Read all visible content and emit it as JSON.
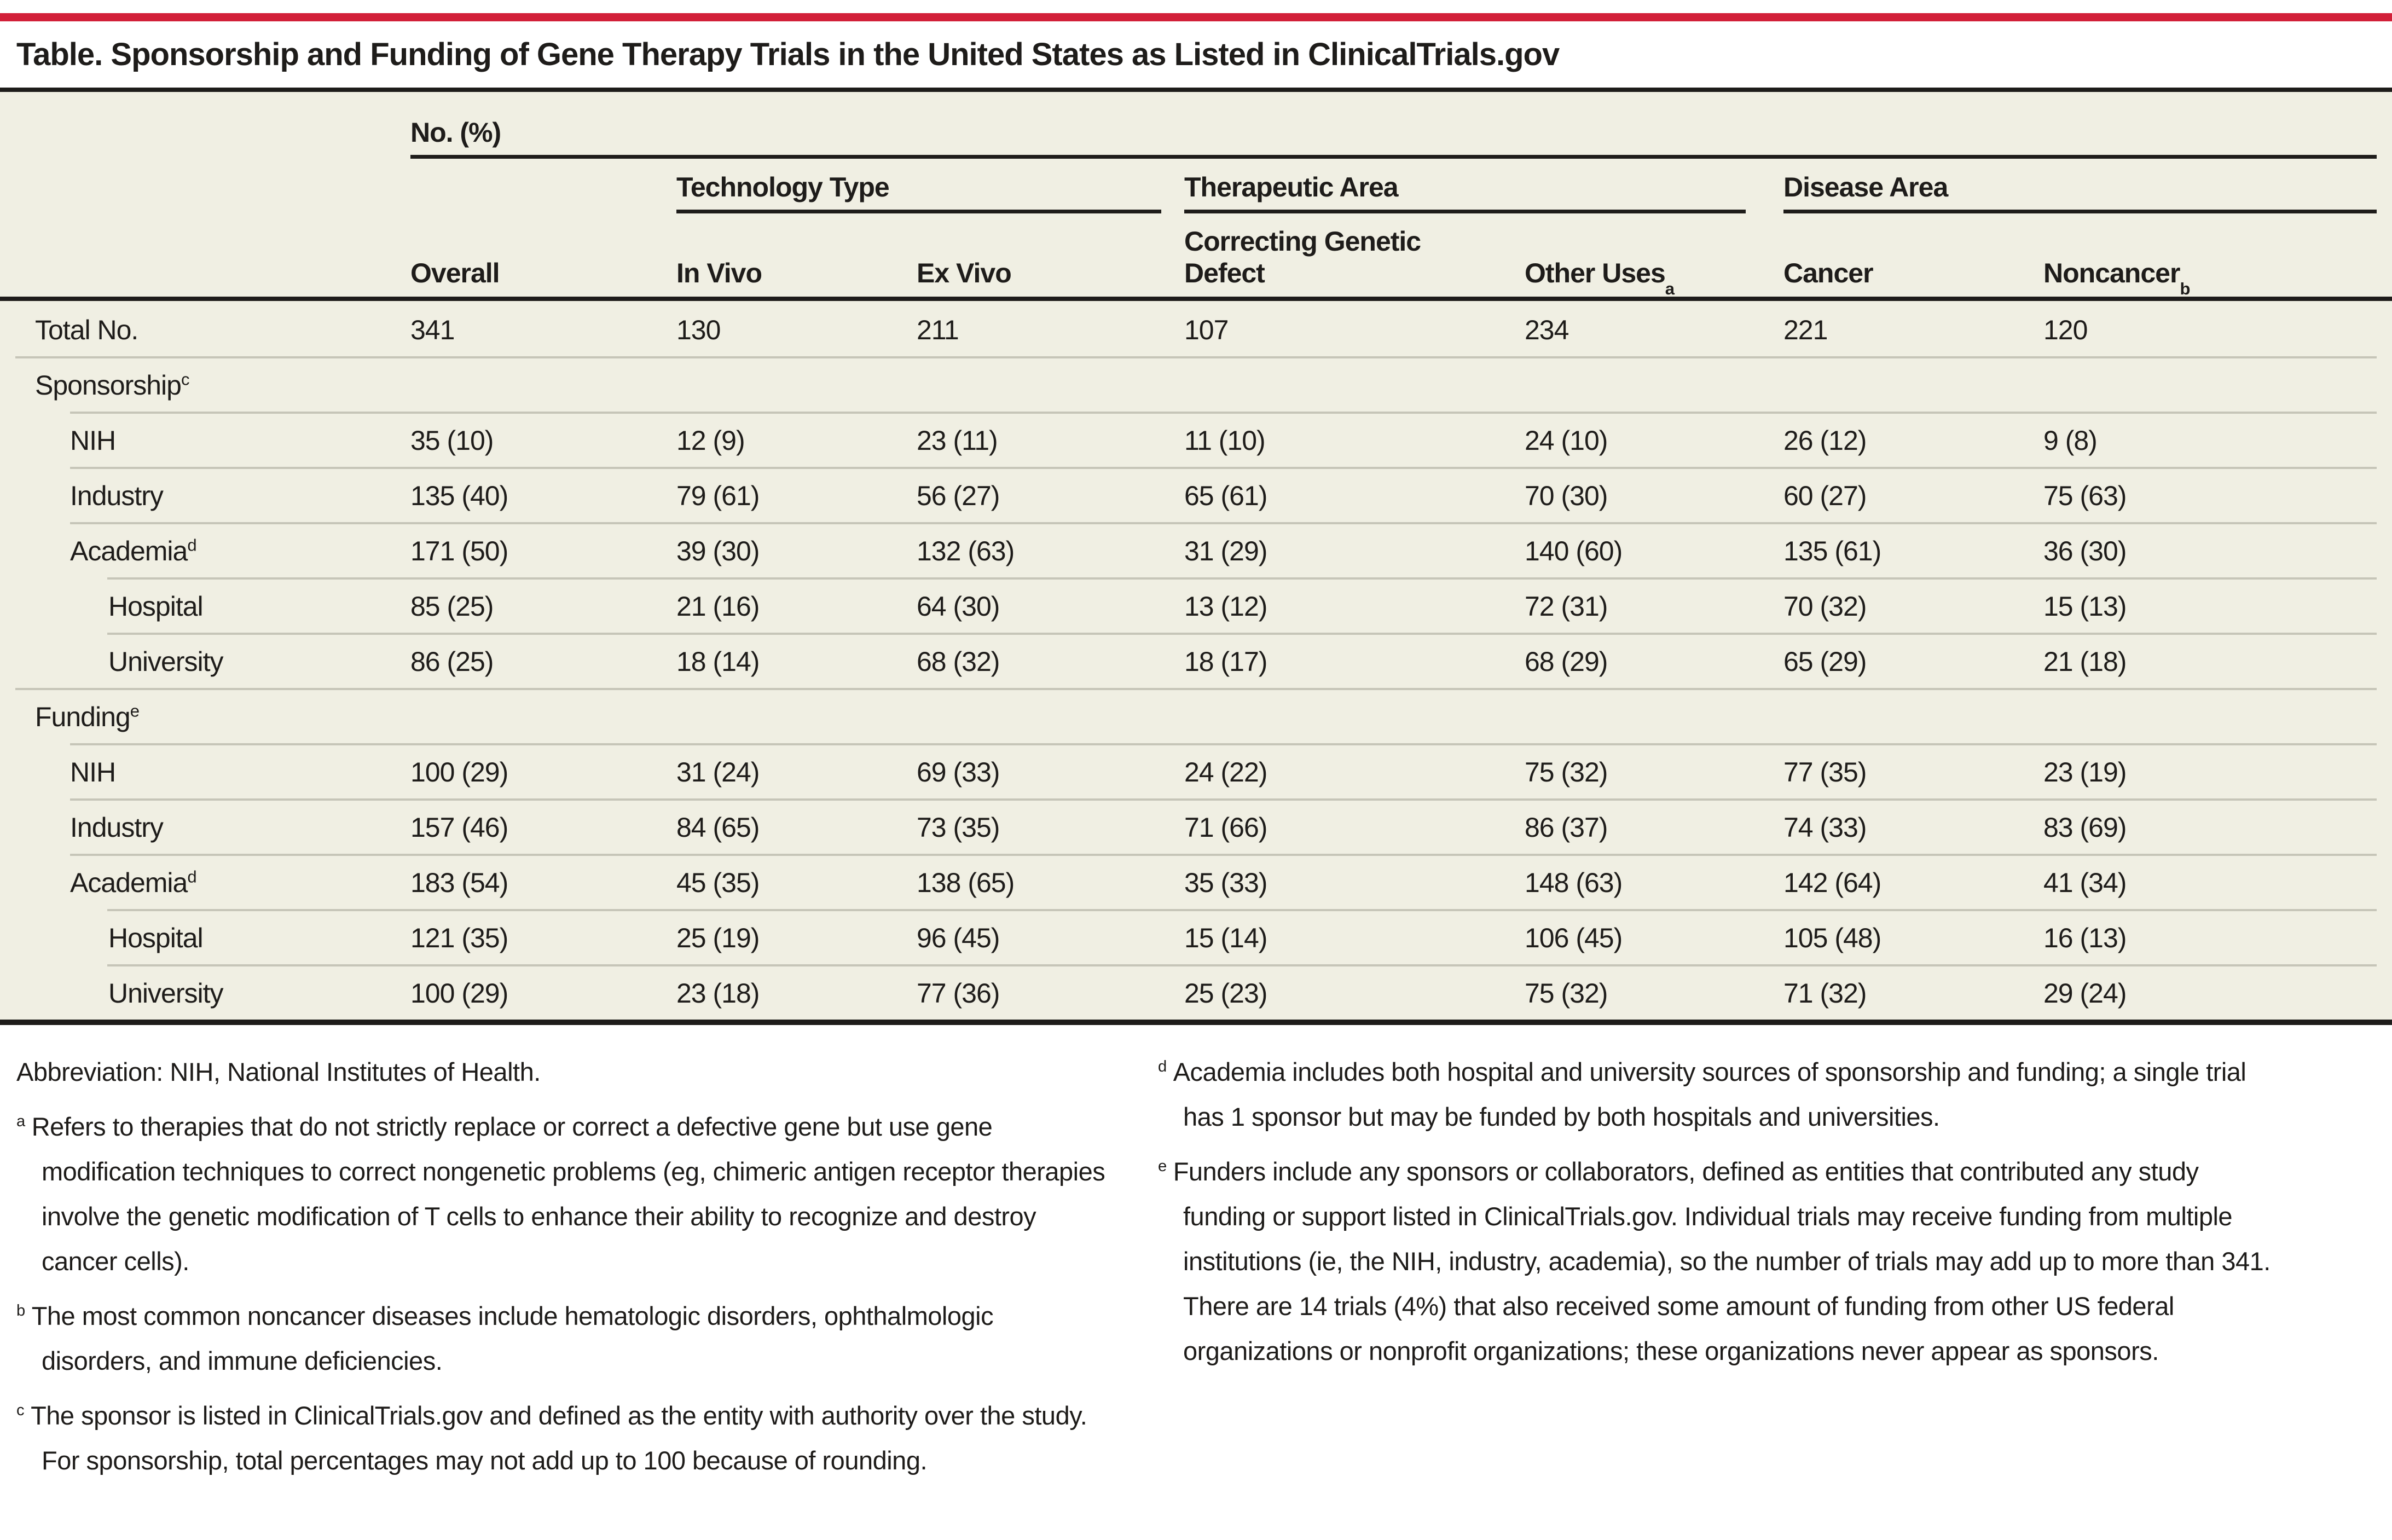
{
  "colors": {
    "accent": "#d22039",
    "paper": "#f0efe3",
    "ink": "#1e1c1a",
    "rule": "#c6c5b8"
  },
  "title": "Table. Sponsorship and Funding of Gene Therapy Trials in the United States as Listed in ClinicalTrials.gov",
  "table": {
    "unit_header": "No. (%)",
    "groups": [
      {
        "label": "Technology Type"
      },
      {
        "label": "Therapeutic Area"
      },
      {
        "label": "Disease Area"
      }
    ],
    "columns": [
      {
        "label": "Overall",
        "sup": ""
      },
      {
        "label": "In Vivo",
        "sup": ""
      },
      {
        "label": "Ex Vivo",
        "sup": ""
      },
      {
        "label": "Correcting Genetic Defect",
        "sup": ""
      },
      {
        "label": "Other Uses",
        "sup": "a"
      },
      {
        "label": "Cancer",
        "sup": ""
      },
      {
        "label": "Noncancer",
        "sup": "b"
      }
    ],
    "rows": [
      {
        "label": "Total No.",
        "sup": "",
        "indent": 0,
        "section": false,
        "sep": "",
        "values": [
          "341",
          "130",
          "211",
          "107",
          "234",
          "221",
          "120"
        ]
      },
      {
        "label": "Sponsorship",
        "sup": "c",
        "indent": 0,
        "section": true,
        "sep": "full",
        "values": [
          "",
          "",
          "",
          "",
          "",
          "",
          ""
        ]
      },
      {
        "label": "NIH",
        "sup": "",
        "indent": 1,
        "section": false,
        "sep": "l1",
        "values": [
          "35 (10)",
          "12 (9)",
          "23 (11)",
          "11 (10)",
          "24 (10)",
          "26 (12)",
          "9 (8)"
        ]
      },
      {
        "label": "Industry",
        "sup": "",
        "indent": 1,
        "section": false,
        "sep": "l1",
        "values": [
          "135 (40)",
          "79 (61)",
          "56 (27)",
          "65 (61)",
          "70 (30)",
          "60 (27)",
          "75 (63)"
        ]
      },
      {
        "label": "Academia",
        "sup": "d",
        "indent": 1,
        "section": false,
        "sep": "l1",
        "values": [
          "171 (50)",
          "39 (30)",
          "132 (63)",
          "31 (29)",
          "140 (60)",
          "135 (61)",
          "36 (30)"
        ]
      },
      {
        "label": "Hospital",
        "sup": "",
        "indent": 2,
        "section": false,
        "sep": "l2",
        "values": [
          "85 (25)",
          "21 (16)",
          "64 (30)",
          "13 (12)",
          "72 (31)",
          "70 (32)",
          "15 (13)"
        ]
      },
      {
        "label": "University",
        "sup": "",
        "indent": 2,
        "section": false,
        "sep": "l2",
        "values": [
          "86 (25)",
          "18 (14)",
          "68 (32)",
          "18 (17)",
          "68 (29)",
          "65 (29)",
          "21 (18)"
        ]
      },
      {
        "label": "Funding",
        "sup": "e",
        "indent": 0,
        "section": true,
        "sep": "full",
        "values": [
          "",
          "",
          "",
          "",
          "",
          "",
          ""
        ]
      },
      {
        "label": "NIH",
        "sup": "",
        "indent": 1,
        "section": false,
        "sep": "l1",
        "values": [
          "100 (29)",
          "31 (24)",
          "69 (33)",
          "24 (22)",
          "75 (32)",
          "77 (35)",
          "23 (19)"
        ]
      },
      {
        "label": "Industry",
        "sup": "",
        "indent": 1,
        "section": false,
        "sep": "l1",
        "values": [
          "157 (46)",
          "84 (65)",
          "73 (35)",
          "71 (66)",
          "86 (37)",
          "74 (33)",
          "83 (69)"
        ]
      },
      {
        "label": "Academia",
        "sup": "d",
        "indent": 1,
        "section": false,
        "sep": "l1",
        "values": [
          "183 (54)",
          "45 (35)",
          "138 (65)",
          "35 (33)",
          "148 (63)",
          "142 (64)",
          "41 (34)"
        ]
      },
      {
        "label": "Hospital",
        "sup": "",
        "indent": 2,
        "section": false,
        "sep": "l2",
        "values": [
          "121 (35)",
          "25 (19)",
          "96 (45)",
          "15 (14)",
          "106 (45)",
          "105 (48)",
          "16 (13)"
        ]
      },
      {
        "label": "University",
        "sup": "",
        "indent": 2,
        "section": false,
        "sep": "l2",
        "values": [
          "100 (29)",
          "23 (18)",
          "77 (36)",
          "25 (23)",
          "75 (32)",
          "71 (32)",
          "29 (24)"
        ]
      }
    ]
  },
  "footnotes": {
    "abbreviation": "Abbreviation: NIH, National Institutes of Health.",
    "left": [
      {
        "marker": "a",
        "text": "Refers to therapies that do not strictly replace or correct a defective gene but use gene modification techniques to correct nongenetic problems (eg, chimeric antigen receptor therapies involve the genetic modification of T cells to enhance their ability to recognize and destroy cancer cells)."
      },
      {
        "marker": "b",
        "text": "The most common noncancer diseases include hematologic disorders, ophthalmologic disorders, and immune deficiencies."
      },
      {
        "marker": "c",
        "text": "The sponsor is listed in ClinicalTrials.gov and defined as the entity with authority over the study. For sponsorship, total percentages may not add up to 100 because of rounding."
      }
    ],
    "right": [
      {
        "marker": "d",
        "text": "Academia includes both hospital and university sources of sponsorship and funding; a single trial has 1 sponsor but may be funded by both hospitals and universities."
      },
      {
        "marker": "e",
        "text": "Funders include any sponsors or collaborators, defined as entities that contributed any study funding or support listed in ClinicalTrials.gov. Individual trials may receive funding from multiple institutions (ie, the NIH, industry, academia), so the number of trials may add up to more than 341. There are 14 trials (4%) that also received some amount of funding from other US federal organizations or nonprofit organizations; these organizations never appear as sponsors."
      }
    ]
  }
}
